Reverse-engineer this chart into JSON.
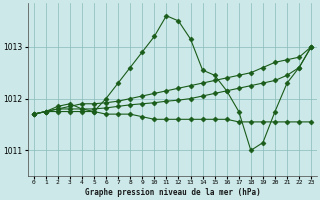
{
  "background_color": "#cce8e8",
  "grid_color": "#88bbbb",
  "line_color": "#1a5c1a",
  "marker": "D",
  "markersize": 2.5,
  "linewidth": 0.8,
  "xlim": [
    -0.5,
    23.5
  ],
  "ylim": [
    1010.5,
    1013.85
  ],
  "yticks": [
    1011,
    1012,
    1013
  ],
  "xticks": [
    0,
    1,
    2,
    3,
    4,
    5,
    6,
    7,
    8,
    9,
    10,
    11,
    12,
    13,
    14,
    15,
    16,
    17,
    18,
    19,
    20,
    21,
    22,
    23
  ],
  "xlabel": "Graphe pression niveau de la mer (hPa)",
  "series": [
    [
      1011.7,
      1011.75,
      1011.75,
      1011.75,
      1011.75,
      1011.75,
      1011.7,
      1011.7,
      1011.7,
      1011.65,
      1011.6,
      1011.6,
      1011.6,
      1011.6,
      1011.6,
      1011.6,
      1011.6,
      1011.55,
      1011.55,
      1011.55,
      1011.55,
      1011.55,
      1011.55,
      1011.55
    ],
    [
      1011.7,
      1011.75,
      1011.8,
      1011.8,
      1011.8,
      1011.8,
      1011.82,
      1011.85,
      1011.88,
      1011.9,
      1011.92,
      1011.95,
      1011.97,
      1012.0,
      1012.05,
      1012.1,
      1012.15,
      1012.2,
      1012.25,
      1012.3,
      1012.35,
      1012.45,
      1012.6,
      1013.0
    ],
    [
      1011.7,
      1011.75,
      1011.8,
      1011.85,
      1011.9,
      1011.9,
      1011.92,
      1011.95,
      1012.0,
      1012.05,
      1012.1,
      1012.15,
      1012.2,
      1012.25,
      1012.3,
      1012.35,
      1012.4,
      1012.45,
      1012.5,
      1012.6,
      1012.7,
      1012.75,
      1012.8,
      1013.0
    ],
    [
      1011.7,
      1011.75,
      1011.85,
      1011.9,
      1011.8,
      1011.75,
      1012.0,
      1012.3,
      1012.6,
      1012.9,
      1013.2,
      1013.6,
      1013.5,
      1013.15,
      1012.55,
      1012.45,
      1012.15,
      1011.75,
      1011.0,
      1011.15,
      1011.75,
      1012.3,
      1012.6,
      1013.0
    ]
  ]
}
